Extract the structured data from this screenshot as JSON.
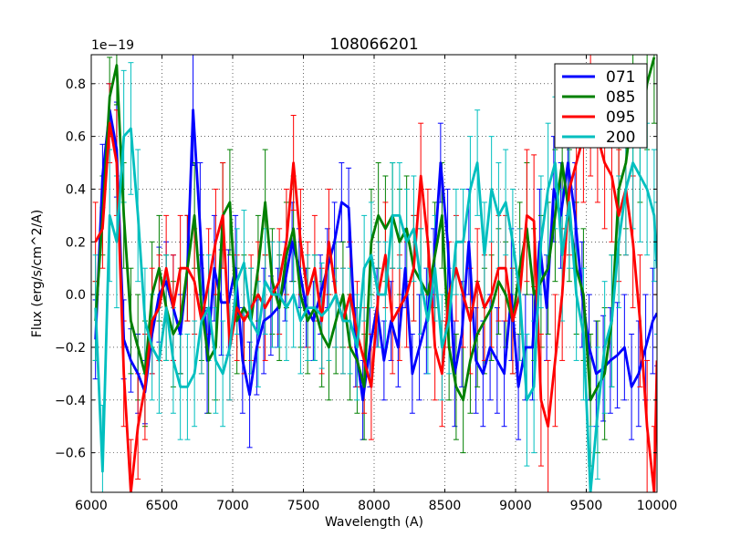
{
  "chart_data": {
    "type": "line",
    "title": "108066201",
    "xlabel": "Wavelength (A)",
    "ylabel": "Flux (erg/s/cm^2/A)",
    "offset_text": "1e−19",
    "xlim": [
      6000,
      10000
    ],
    "ylim": [
      -0.75,
      0.91
    ],
    "xticks": [
      6000,
      6500,
      7000,
      7500,
      8000,
      8500,
      9000,
      9500,
      10000
    ],
    "xtick_labels": [
      "6000",
      "6500",
      "7000",
      "7500",
      "8000",
      "8500",
      "9000",
      "9500",
      "10000"
    ],
    "yticks": [
      -0.6,
      -0.4,
      -0.2,
      0.0,
      0.2,
      0.4,
      0.6,
      0.8
    ],
    "ytick_labels": [
      "−0.6",
      "−0.4",
      "−0.2",
      "0.0",
      "0.2",
      "0.4",
      "0.6",
      "0.8"
    ],
    "grid": true,
    "legend_position": "top-right",
    "series": [
      {
        "name": "071",
        "color": "#0000ff",
        "x": [
          6030,
          6080,
          6130,
          6180,
          6230,
          6280,
          6330,
          6380,
          6430,
          6480,
          6530,
          6580,
          6630,
          6680,
          6720,
          6770,
          6820,
          6870,
          6920,
          6970,
          7020,
          7070,
          7120,
          7170,
          7220,
          7270,
          7320,
          7370,
          7420,
          7470,
          7520,
          7570,
          7620,
          7670,
          7720,
          7770,
          7820,
          7870,
          7920,
          7970,
          8020,
          8070,
          8120,
          8170,
          8220,
          8270,
          8320,
          8370,
          8420,
          8470,
          8520,
          8570,
          8620,
          8670,
          8720,
          8770,
          8820,
          8870,
          8920,
          8970,
          9020,
          9070,
          9120,
          9170,
          9220,
          9270,
          9320,
          9370,
          9420,
          9470,
          9520,
          9570,
          9620,
          9670,
          9720,
          9770,
          9820,
          9870,
          9920,
          9970,
          10000
        ],
        "y": [
          -0.17,
          0.45,
          0.7,
          0.55,
          -0.17,
          -0.25,
          -0.3,
          -0.37,
          -0.15,
          0.0,
          0.05,
          -0.05,
          -0.15,
          0.1,
          0.7,
          0.25,
          -0.25,
          0.1,
          -0.03,
          -0.03,
          0.1,
          -0.25,
          -0.38,
          -0.2,
          -0.1,
          -0.08,
          -0.05,
          0.05,
          0.2,
          0.1,
          -0.05,
          -0.1,
          0.0,
          0.1,
          0.2,
          0.35,
          0.33,
          -0.2,
          -0.4,
          -0.2,
          -0.05,
          -0.25,
          -0.1,
          -0.2,
          0.1,
          -0.3,
          -0.2,
          -0.1,
          0.1,
          0.5,
          0.2,
          -0.3,
          -0.15,
          0.2,
          -0.25,
          -0.3,
          -0.2,
          -0.25,
          -0.3,
          0.0,
          -0.35,
          -0.2,
          -0.2,
          0.2,
          -0.05,
          0.4,
          0.3,
          0.5,
          0.3,
          0.0,
          -0.2,
          -0.3,
          -0.28,
          -0.25,
          -0.23,
          -0.2,
          -0.35,
          -0.3,
          -0.2,
          -0.1,
          -0.07
        ],
        "err": [
          0.15,
          0.12,
          0.1,
          0.18,
          0.15,
          0.12,
          0.15,
          0.12,
          0.15,
          0.18,
          0.15,
          0.2,
          0.15,
          0.2,
          0.21,
          0.25,
          0.2,
          0.2,
          0.2,
          0.2,
          0.2,
          0.2,
          0.2,
          0.18,
          0.2,
          0.15,
          0.15,
          0.15,
          0.15,
          0.15,
          0.15,
          0.15,
          0.15,
          0.15,
          0.15,
          0.15,
          0.15,
          0.15,
          0.15,
          0.15,
          0.15,
          0.15,
          0.15,
          0.15,
          0.15,
          0.15,
          0.2,
          0.2,
          0.15,
          0.15,
          0.2,
          0.2,
          0.2,
          0.2,
          0.2,
          0.2,
          0.2,
          0.2,
          0.2,
          0.25,
          0.2,
          0.2,
          0.2,
          0.2,
          0.2,
          0.2,
          0.2,
          0.2,
          0.2,
          0.2,
          0.2,
          0.2,
          0.2,
          0.2,
          0.2,
          0.2,
          0.2,
          0.2,
          0.2,
          0.2,
          0.2
        ]
      },
      {
        "name": "085",
        "color": "#008000",
        "x": [
          6030,
          6080,
          6130,
          6180,
          6230,
          6280,
          6330,
          6380,
          6430,
          6480,
          6530,
          6580,
          6630,
          6680,
          6730,
          6780,
          6830,
          6880,
          6930,
          6980,
          7030,
          7080,
          7130,
          7180,
          7230,
          7280,
          7330,
          7380,
          7430,
          7480,
          7530,
          7580,
          7630,
          7680,
          7730,
          7780,
          7830,
          7880,
          7930,
          7980,
          8030,
          8080,
          8130,
          8180,
          8230,
          8280,
          8330,
          8380,
          8430,
          8480,
          8530,
          8580,
          8630,
          8680,
          8730,
          8780,
          8830,
          8880,
          8930,
          8980,
          9030,
          9080,
          9130,
          9180,
          9230,
          9280,
          9330,
          9380,
          9430,
          9480,
          9530,
          9580,
          9630,
          9680,
          9730,
          9780,
          9830,
          9880,
          9930,
          9980
        ],
        "y": [
          -0.1,
          0.3,
          0.75,
          0.87,
          0.3,
          -0.1,
          -0.2,
          -0.3,
          0.0,
          0.1,
          -0.05,
          -0.15,
          -0.1,
          0.1,
          0.3,
          -0.05,
          -0.25,
          -0.2,
          0.3,
          0.35,
          -0.1,
          -0.05,
          -0.1,
          0.1,
          0.35,
          0.05,
          -0.05,
          0.15,
          0.25,
          0.0,
          -0.1,
          -0.05,
          -0.15,
          -0.2,
          -0.1,
          0.0,
          -0.2,
          -0.25,
          -0.35,
          0.2,
          0.3,
          0.25,
          0.3,
          0.2,
          0.25,
          0.1,
          0.05,
          0.0,
          0.15,
          0.3,
          -0.2,
          -0.35,
          -0.4,
          -0.25,
          -0.15,
          -0.1,
          -0.05,
          0.05,
          0.0,
          -0.1,
          0.1,
          0.25,
          0.0,
          0.05,
          0.1,
          0.3,
          0.5,
          0.3,
          0.1,
          0.0,
          -0.4,
          -0.35,
          -0.3,
          -0.1,
          0.4,
          0.5,
          0.7,
          0.6,
          0.8,
          0.9
        ],
        "err": [
          0.15,
          0.15,
          0.15,
          0.15,
          0.2,
          0.2,
          0.2,
          0.2,
          0.2,
          0.2,
          0.2,
          0.2,
          0.2,
          0.2,
          0.2,
          0.2,
          0.2,
          0.2,
          0.2,
          0.2,
          0.2,
          0.2,
          0.2,
          0.2,
          0.2,
          0.2,
          0.2,
          0.2,
          0.2,
          0.2,
          0.2,
          0.2,
          0.2,
          0.2,
          0.2,
          0.2,
          0.2,
          0.2,
          0.2,
          0.2,
          0.2,
          0.2,
          0.2,
          0.2,
          0.2,
          0.2,
          0.2,
          0.2,
          0.2,
          0.2,
          0.2,
          0.2,
          0.2,
          0.2,
          0.2,
          0.2,
          0.2,
          0.2,
          0.2,
          0.2,
          0.25,
          0.25,
          0.25,
          0.25,
          0.25,
          0.25,
          0.25,
          0.25,
          0.25,
          0.25,
          0.25,
          0.25,
          0.25,
          0.25,
          0.25,
          0.25,
          0.25,
          0.25,
          0.25,
          0.25
        ]
      },
      {
        "name": "095",
        "color": "#ff0000",
        "x": [
          6030,
          6080,
          6130,
          6180,
          6230,
          6280,
          6330,
          6380,
          6430,
          6480,
          6530,
          6580,
          6630,
          6680,
          6730,
          6780,
          6830,
          6880,
          6930,
          6980,
          7030,
          7080,
          7130,
          7180,
          7230,
          7280,
          7330,
          7380,
          7430,
          7480,
          7530,
          7580,
          7630,
          7680,
          7730,
          7780,
          7830,
          7880,
          7930,
          7980,
          8030,
          8080,
          8130,
          8180,
          8230,
          8280,
          8330,
          8380,
          8430,
          8480,
          8530,
          8580,
          8630,
          8680,
          8730,
          8780,
          8830,
          8880,
          8930,
          8980,
          9030,
          9080,
          9130,
          9180,
          9230,
          9280,
          9330,
          9380,
          9430,
          9480,
          9530,
          9580,
          9630,
          9680,
          9730,
          9780,
          9830,
          9880,
          9930,
          9980,
          10000
        ],
        "y": [
          0.2,
          0.25,
          0.65,
          0.5,
          -0.3,
          -0.75,
          -0.5,
          -0.35,
          -0.1,
          -0.05,
          0.1,
          -0.05,
          0.1,
          0.1,
          0.05,
          -0.1,
          0.05,
          0.2,
          0.3,
          -0.2,
          -0.05,
          -0.1,
          -0.05,
          0.0,
          -0.05,
          0.0,
          0.05,
          0.2,
          0.5,
          0.2,
          0.0,
          0.1,
          -0.1,
          0.2,
          0.0,
          -0.1,
          0.0,
          -0.15,
          -0.25,
          -0.35,
          0.0,
          0.15,
          -0.1,
          -0.05,
          0.0,
          0.1,
          0.45,
          0.2,
          -0.2,
          -0.3,
          0.0,
          0.1,
          0.0,
          -0.1,
          0.05,
          -0.05,
          0.0,
          0.1,
          0.1,
          -0.1,
          0.0,
          0.3,
          0.28,
          -0.4,
          -0.5,
          -0.25,
          0.0,
          0.4,
          0.5,
          0.6,
          0.7,
          0.6,
          0.5,
          0.45,
          0.3,
          0.4,
          0.2,
          -0.1,
          -0.5,
          -0.75,
          -0.25
        ],
        "err": [
          0.15,
          0.15,
          0.15,
          0.2,
          0.2,
          0.2,
          0.2,
          0.2,
          0.2,
          0.2,
          0.2,
          0.2,
          0.2,
          0.2,
          0.2,
          0.2,
          0.2,
          0.2,
          0.2,
          0.2,
          0.2,
          0.2,
          0.2,
          0.2,
          0.2,
          0.2,
          0.2,
          0.2,
          0.18,
          0.2,
          0.2,
          0.2,
          0.2,
          0.2,
          0.2,
          0.2,
          0.2,
          0.2,
          0.2,
          0.2,
          0.2,
          0.2,
          0.2,
          0.2,
          0.2,
          0.2,
          0.2,
          0.2,
          0.2,
          0.2,
          0.2,
          0.2,
          0.2,
          0.2,
          0.2,
          0.2,
          0.2,
          0.2,
          0.2,
          0.2,
          0.25,
          0.25,
          0.25,
          0.25,
          0.25,
          0.25,
          0.25,
          0.25,
          0.25,
          0.25,
          0.25,
          0.25,
          0.25,
          0.25,
          0.25,
          0.25,
          0.25,
          0.25,
          0.25,
          0.25,
          0.25
        ]
      },
      {
        "name": "200",
        "color": "#00bfbf",
        "x": [
          6030,
          6080,
          6130,
          6180,
          6230,
          6280,
          6330,
          6380,
          6430,
          6480,
          6530,
          6580,
          6630,
          6680,
          6730,
          6780,
          6830,
          6880,
          6930,
          6980,
          7030,
          7080,
          7130,
          7180,
          7230,
          7280,
          7330,
          7380,
          7430,
          7480,
          7530,
          7580,
          7630,
          7680,
          7730,
          7780,
          7830,
          7880,
          7930,
          7980,
          8030,
          8080,
          8130,
          8180,
          8230,
          8280,
          8330,
          8380,
          8430,
          8480,
          8530,
          8580,
          8630,
          8680,
          8730,
          8780,
          8830,
          8880,
          8930,
          8980,
          9030,
          9080,
          9130,
          9180,
          9230,
          9280,
          9330,
          9380,
          9430,
          9480,
          9530,
          9580,
          9630,
          9680,
          9730,
          9780,
          9830,
          9880,
          9930,
          9980,
          10000
        ],
        "y": [
          -0.05,
          -0.67,
          0.3,
          0.2,
          0.6,
          0.63,
          0.3,
          -0.1,
          -0.2,
          -0.25,
          -0.05,
          -0.25,
          -0.35,
          -0.35,
          -0.3,
          -0.1,
          -0.05,
          -0.25,
          -0.3,
          -0.2,
          0.05,
          0.12,
          -0.1,
          -0.15,
          0.05,
          0.0,
          0.0,
          -0.05,
          0.0,
          -0.1,
          -0.05,
          -0.05,
          -0.08,
          -0.05,
          0.0,
          -0.1,
          -0.1,
          -0.2,
          0.1,
          0.15,
          0.0,
          0.0,
          0.3,
          0.3,
          0.2,
          0.25,
          0.05,
          -0.1,
          0.1,
          -0.2,
          -0.1,
          0.2,
          0.2,
          0.4,
          0.5,
          0.15,
          0.4,
          0.3,
          0.35,
          0.2,
          0.0,
          -0.4,
          -0.35,
          0.2,
          0.4,
          0.5,
          0.15,
          0.35,
          0.0,
          -0.15,
          -0.75,
          -0.45,
          -0.2,
          -0.1,
          0.2,
          0.4,
          0.5,
          0.45,
          0.4,
          0.3,
          0.1
        ],
        "err": [
          0.2,
          0.25,
          0.25,
          0.25,
          0.25,
          0.25,
          0.25,
          0.2,
          0.2,
          0.2,
          0.2,
          0.2,
          0.2,
          0.2,
          0.2,
          0.2,
          0.2,
          0.2,
          0.2,
          0.2,
          0.2,
          0.2,
          0.2,
          0.2,
          0.2,
          0.2,
          0.2,
          0.2,
          0.2,
          0.2,
          0.2,
          0.2,
          0.2,
          0.2,
          0.2,
          0.2,
          0.2,
          0.2,
          0.2,
          0.2,
          0.2,
          0.2,
          0.2,
          0.2,
          0.2,
          0.2,
          0.2,
          0.2,
          0.2,
          0.2,
          0.2,
          0.2,
          0.2,
          0.2,
          0.2,
          0.2,
          0.2,
          0.2,
          0.2,
          0.2,
          0.25,
          0.25,
          0.25,
          0.25,
          0.25,
          0.25,
          0.25,
          0.25,
          0.25,
          0.25,
          0.25,
          0.25,
          0.25,
          0.25,
          0.25,
          0.25,
          0.25,
          0.25,
          0.25,
          0.25,
          0.25
        ]
      }
    ]
  }
}
